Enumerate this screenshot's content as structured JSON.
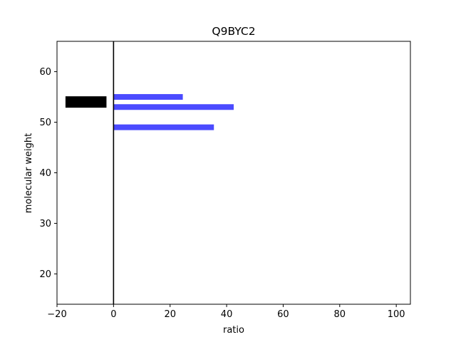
{
  "chart_data": {
    "type": "bar",
    "orientation": "horizontal",
    "title": "Q9BYC2",
    "xlabel": "ratio",
    "ylabel": "molecular weight",
    "xlim": [
      -20,
      105
    ],
    "ylim": [
      14,
      66
    ],
    "xticks": [
      -20,
      0,
      20,
      40,
      60,
      80,
      100
    ],
    "yticks": [
      20,
      30,
      40,
      50,
      60
    ],
    "grid": false,
    "reference_line_x": 0,
    "bars": [
      {
        "y": 54,
        "x_start": -17,
        "x_end": -2.5,
        "color": "#000000"
      },
      {
        "y": 55,
        "x_start": 0,
        "x_end": 24.5,
        "color": "#4b4bff"
      },
      {
        "y": 53,
        "x_start": 0,
        "x_end": 42.5,
        "color": "#4b4bff"
      },
      {
        "y": 49,
        "x_start": 0,
        "x_end": 35.5,
        "color": "#4b4bff"
      }
    ]
  }
}
